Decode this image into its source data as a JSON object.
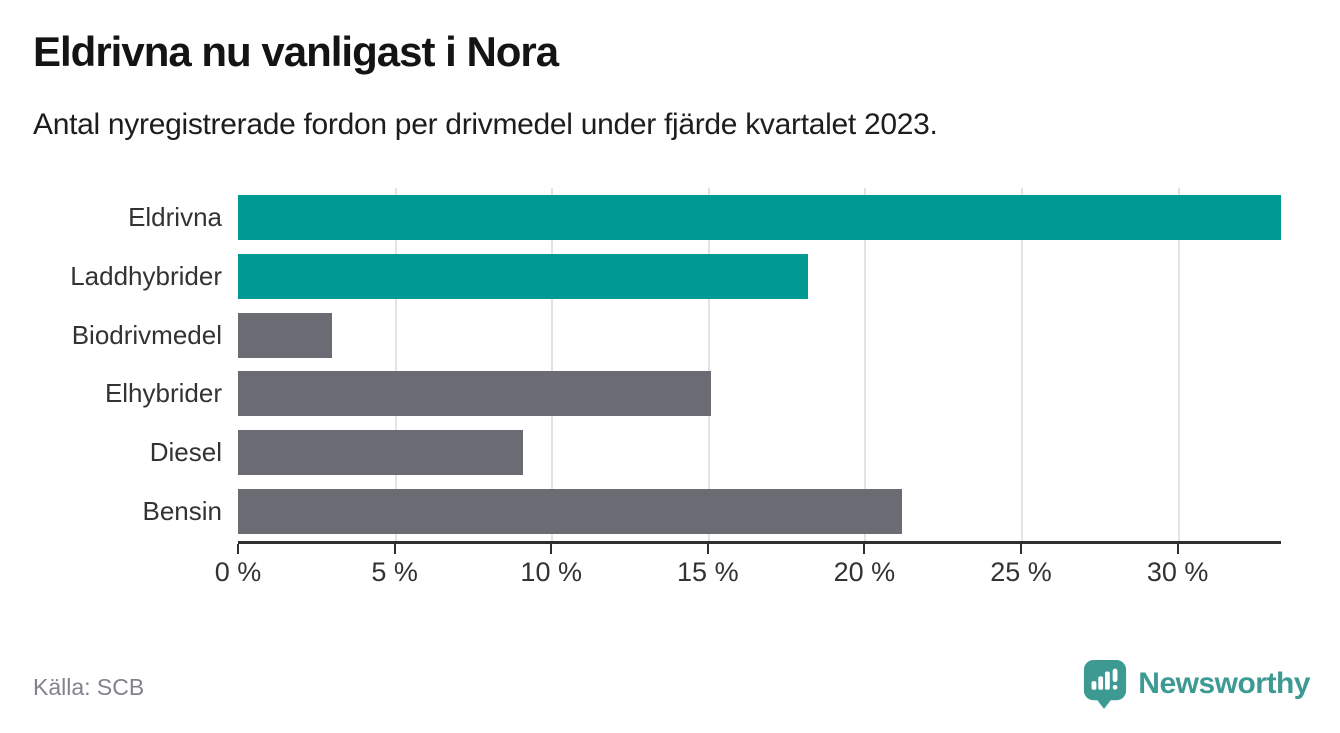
{
  "header": {
    "title": "Eldrivna nu vanligast i Nora",
    "subtitle": "Antal nyregistrerade fordon per drivmedel under fjärde kvartalet 2023."
  },
  "footer": {
    "source": "Källa: SCB",
    "logo_text": "Newsworthy",
    "logo_icon": "newsworthy-speech-bubble-bar-chart-icon"
  },
  "colors": {
    "accent_teal": "#009a93",
    "muted_gray": "#6b6b73",
    "axis": "#2f2f2f",
    "gridline": "#e3e3e3",
    "logo_teal": "#3d9a93",
    "title_text": "#141414",
    "label_text": "#333333",
    "source_text": "#82828c"
  },
  "chart_data": {
    "type": "bar",
    "orientation": "horizontal",
    "title": "Eldrivna nu vanligast i Nora",
    "subtitle": "Antal nyregistrerade fordon per drivmedel under fjärde kvartalet 2023.",
    "categories": [
      "Eldrivna",
      "Laddhybrider",
      "Biodrivmedel",
      "Elhybrider",
      "Diesel",
      "Bensin"
    ],
    "values": [
      33.3,
      18.2,
      3.0,
      15.1,
      9.1,
      21.2
    ],
    "unit": "%",
    "highlight": [
      true,
      true,
      false,
      false,
      false,
      false
    ],
    "xlim": [
      0,
      33.3
    ],
    "x_ticks": [
      0,
      5,
      10,
      15,
      20,
      25,
      30
    ],
    "x_tick_labels": [
      "0 %",
      "5 %",
      "10 %",
      "15 %",
      "20 %",
      "25 %",
      "30 %"
    ],
    "grid": true,
    "legend": false,
    "ylabel": "",
    "xlabel": ""
  }
}
